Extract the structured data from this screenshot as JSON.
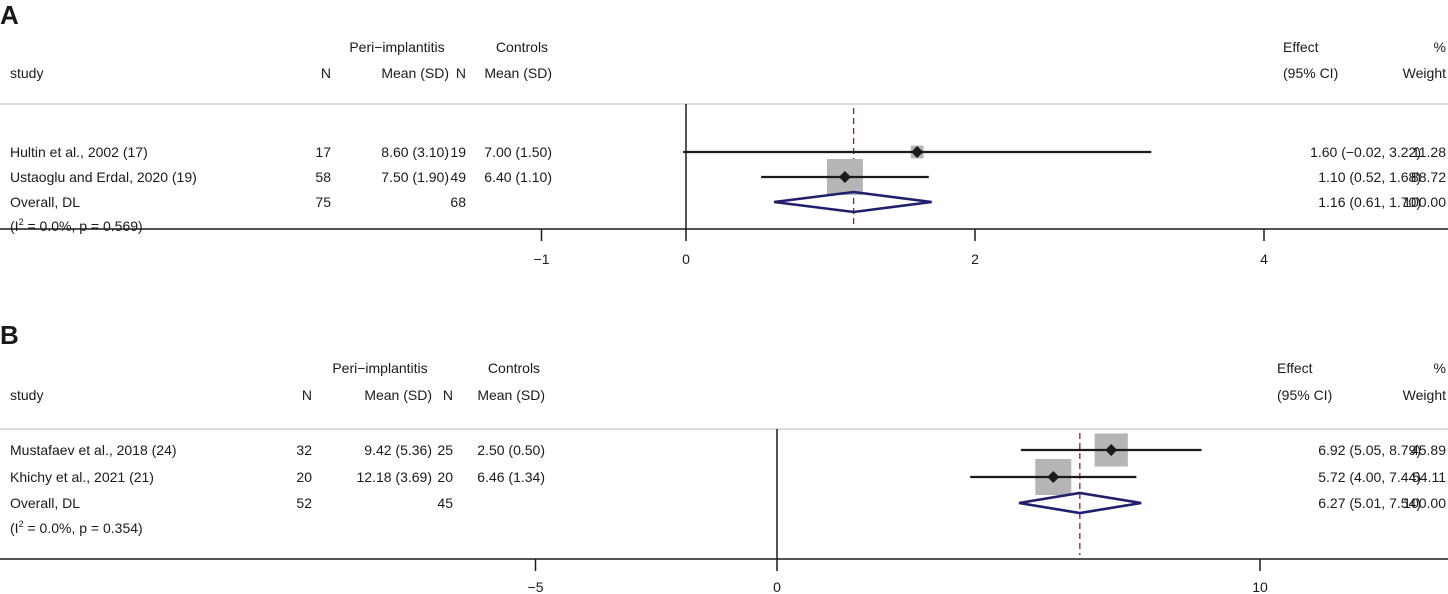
{
  "panels": [
    {
      "letter": "A"
    },
    {
      "letter": "B"
    }
  ],
  "chart_data": [
    {
      "type": "forest",
      "panel": "A",
      "header": {
        "group1": "Peri−implantitis",
        "group2": "Controls",
        "study": "study",
        "n": "N",
        "mean_sd": "Mean (SD)",
        "effect": "Effect",
        "ci": "(95% CI)",
        "pct": "%",
        "weight": "Weight"
      },
      "rows": [
        {
          "study": "Hultin et al., 2002 (17)",
          "n1": "17",
          "m1": "8.60 (3.10)",
          "n2": "19",
          "m2": "7.00 (1.50)",
          "est": 1.6,
          "lo": -0.02,
          "hi": 3.22,
          "ci_text": "1.60 (−0.02, 3.22)",
          "weight": 11.28,
          "weight_text": "11.28"
        },
        {
          "study": "Ustaoglu and Erdal, 2020 (19)",
          "n1": "58",
          "m1": "7.50 (1.90)",
          "n2": "49",
          "m2": "6.40 (1.10)",
          "est": 1.1,
          "lo": 0.52,
          "hi": 1.68,
          "ci_text": "1.10 (0.52, 1.68)",
          "weight": 88.72,
          "weight_text": "88.72"
        }
      ],
      "overall": {
        "label": "Overall, DL",
        "n1": "75",
        "n2": "68",
        "est": 1.16,
        "lo": 0.61,
        "hi": 1.7,
        "ci_text": "1.16 (0.61, 1.70)",
        "weight_text": "100.00"
      },
      "heterogeneity": {
        "i2": "0.0%",
        "p": "0.569"
      },
      "ticks": [
        -1,
        0,
        2,
        4
      ],
      "tick_labels": [
        "−1",
        "0",
        "2",
        "4"
      ],
      "xlim": [
        -1,
        4
      ]
    },
    {
      "type": "forest",
      "panel": "B",
      "header": {
        "group1": "Peri−implantitis",
        "group2": "Controls",
        "study": "study",
        "n": "N",
        "mean_sd": "Mean (SD)",
        "effect": "Effect",
        "ci": "(95% CI)",
        "pct": "%",
        "weight": "Weight"
      },
      "rows": [
        {
          "study": "Mustafaev et al., 2018 (24)",
          "n1": "32",
          "m1": "9.42 (5.36)",
          "n2": "25",
          "m2": "2.50 (0.50)",
          "est": 6.92,
          "lo": 5.05,
          "hi": 8.79,
          "ci_text": "6.92 (5.05, 8.79)",
          "weight": 45.89,
          "weight_text": "45.89"
        },
        {
          "study": "Khichy et al., 2021 (21)",
          "n1": "20",
          "m1": "12.18 (3.69)",
          "n2": "20",
          "m2": "6.46 (1.34)",
          "est": 5.72,
          "lo": 4.0,
          "hi": 7.44,
          "ci_text": "5.72 (4.00, 7.44)",
          "weight": 54.11,
          "weight_text": "54.11"
        }
      ],
      "overall": {
        "label": "Overall, DL",
        "n1": "52",
        "n2": "45",
        "est": 6.27,
        "lo": 5.01,
        "hi": 7.54,
        "ci_text": "6.27 (5.01, 7.54)",
        "weight_text": "100.00"
      },
      "heterogeneity": {
        "i2": "0.0%",
        "p": "0.354"
      },
      "ticks": [
        -5,
        0,
        10
      ],
      "tick_labels": [
        "−5",
        "0",
        "10"
      ],
      "xlim": [
        -5,
        10
      ]
    }
  ],
  "colors": {
    "diamond": "#1f1f6e",
    "dashed_line": "#9b1c1c",
    "weight_box": "#b5b5b5",
    "rule": "#d0d0d0",
    "axis": "#1a1a1a"
  }
}
